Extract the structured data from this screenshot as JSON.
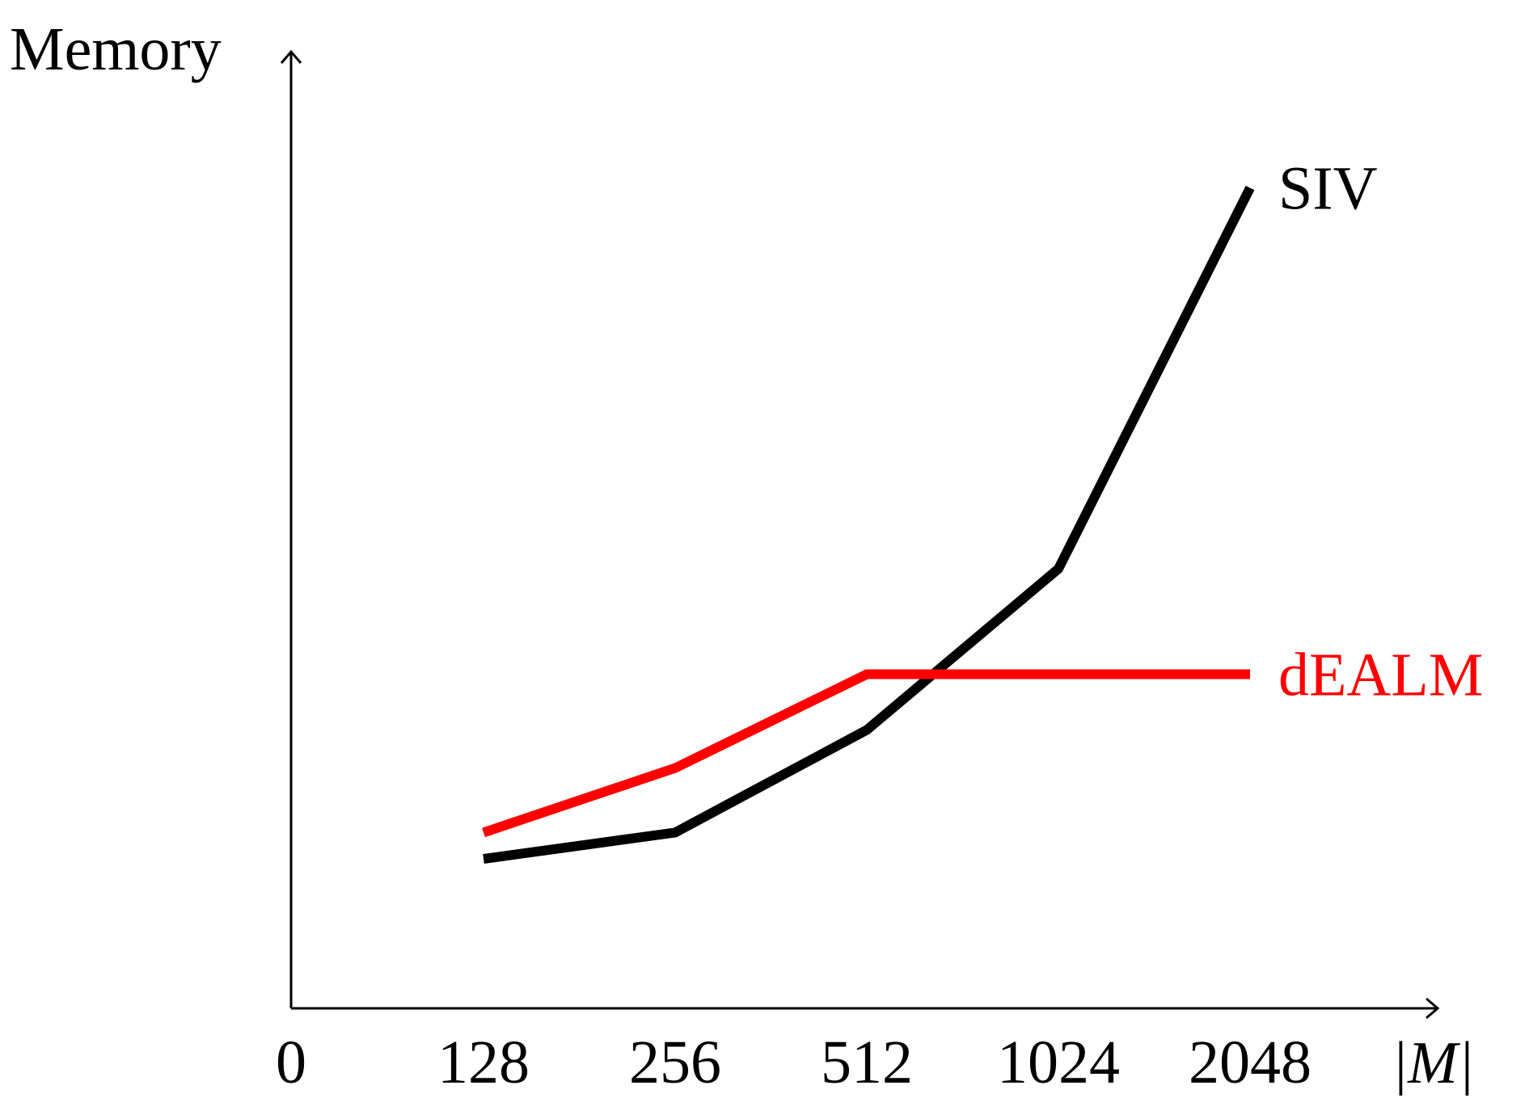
{
  "chart_data": {
    "type": "line",
    "ylabel": "Memory",
    "xlabel": "|M|",
    "origin_label": "0",
    "categories": [
      "128",
      "256",
      "512",
      "1024",
      "2048"
    ],
    "series": [
      {
        "name": "SIV",
        "color": "#000000",
        "values": [
          5.1,
          6.0,
          9.5,
          15.0,
          28.0
        ]
      },
      {
        "name": "dEALM",
        "color": "#ff0000",
        "values": [
          6.0,
          8.2,
          11.4,
          11.4,
          11.4
        ]
      }
    ],
    "ylim": [
      0,
      30
    ],
    "grid": false,
    "legend": "inline-at-line-ends"
  }
}
